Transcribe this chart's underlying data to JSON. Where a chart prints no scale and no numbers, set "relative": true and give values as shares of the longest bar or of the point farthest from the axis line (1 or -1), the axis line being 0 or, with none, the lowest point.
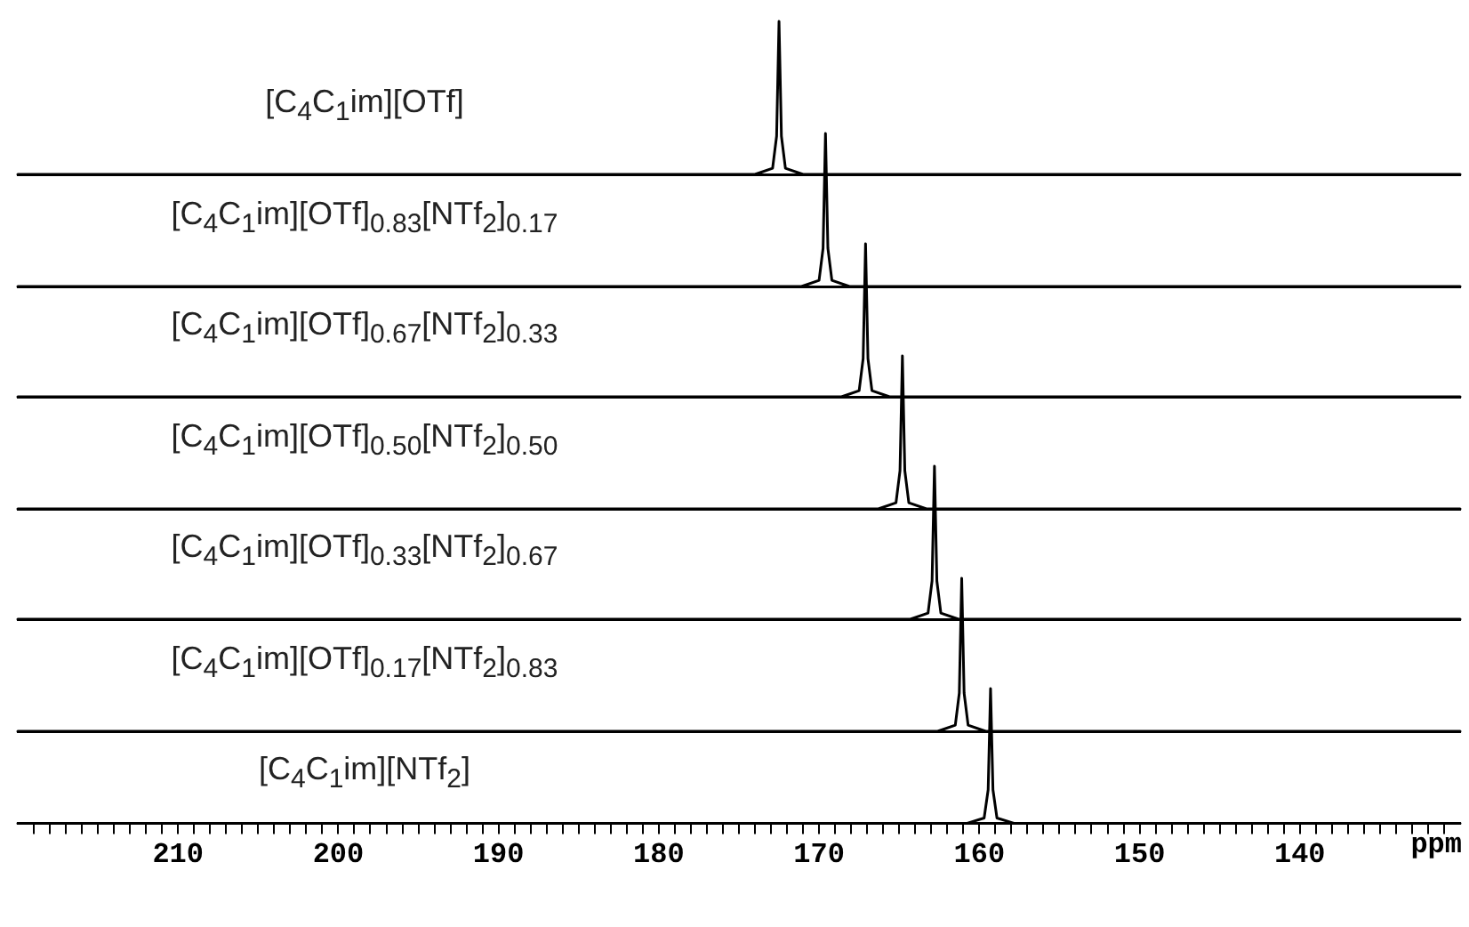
{
  "chart_data": [
    {
      "type": "line",
      "title": "[C$_{4}$C$_{1}$im][OTf]",
      "relative": true,
      "tick_labels": false,
      "xlim": [
        220,
        130
      ],
      "color": "#000000",
      "x": [
        220,
        174,
        172.9,
        172.65,
        172.5,
        172.35,
        172.1,
        171,
        130
      ],
      "values": [
        0,
        0,
        0.04,
        0.25,
        1,
        0.25,
        0.04,
        0,
        0
      ]
    },
    {
      "type": "line",
      "title": "[C$_{4}$C$_{1}$im][OTf]$_{0.83}$[NTf$_{2}$]$_{0.17}$",
      "relative": true,
      "tick_labels": false,
      "xlim": [
        220,
        130
      ],
      "color": "#000000",
      "x": [
        220,
        171.1,
        170,
        169.75,
        169.6,
        169.45,
        169.2,
        168.1,
        130
      ],
      "values": [
        0,
        0,
        0.04,
        0.25,
        1,
        0.25,
        0.04,
        0,
        0
      ]
    },
    {
      "type": "line",
      "title": "[C$_{4}$C$_{1}$im][OTf]$_{0.67}$[NTf$_{2}$]$_{0.33}$",
      "relative": true,
      "tick_labels": false,
      "xlim": [
        220,
        130
      ],
      "color": "#000000",
      "x": [
        220,
        168.6,
        167.5,
        167.25,
        167.1,
        166.95,
        166.7,
        165.6,
        130
      ],
      "values": [
        0,
        0,
        0.04,
        0.25,
        1,
        0.25,
        0.04,
        0,
        0
      ]
    },
    {
      "type": "line",
      "title": "[C$_{4}$C$_{1}$im][OTf]$_{0.50}$[NTf$_{2}$]$_{0.50}$",
      "relative": true,
      "tick_labels": false,
      "xlim": [
        220,
        130
      ],
      "color": "#000000",
      "x": [
        220,
        166.3,
        165.2,
        164.95,
        164.8,
        164.65,
        164.4,
        163.3,
        130
      ],
      "values": [
        0,
        0,
        0.04,
        0.25,
        1,
        0.25,
        0.04,
        0,
        0
      ]
    },
    {
      "type": "line",
      "title": "[C$_{4}$C$_{1}$im][OTf]$_{0.33}$[NTf$_{2}$]$_{0.67}$",
      "relative": true,
      "tick_labels": false,
      "xlim": [
        220,
        130
      ],
      "color": "#000000",
      "x": [
        220,
        164.3,
        163.2,
        162.95,
        162.8,
        162.65,
        162.4,
        161.3,
        130
      ],
      "values": [
        0,
        0,
        0.04,
        0.25,
        1,
        0.25,
        0.04,
        0,
        0
      ]
    },
    {
      "type": "line",
      "title": "[C$_{4}$C$_{1}$im][OTf]$_{0.17}$[NTf$_{2}$]$_{0.83}$",
      "relative": true,
      "tick_labels": false,
      "xlim": [
        220,
        130
      ],
      "color": "#000000",
      "x": [
        220,
        162.6,
        161.5,
        161.25,
        161.1,
        160.95,
        160.7,
        159.6,
        130
      ],
      "values": [
        0,
        0,
        0.04,
        0.25,
        1,
        0.25,
        0.04,
        0,
        0
      ]
    },
    {
      "type": "line",
      "title": "[C$_{4}$C$_{1}$im][NTf$_{2}$]",
      "relative": true,
      "tick_labels": "x",
      "xlim": [
        220,
        130
      ],
      "xlabel": "ppm",
      "color": "#000000",
      "x": [
        220,
        160.8,
        159.7,
        159.45,
        159.3,
        159.15,
        158.9,
        157.8,
        130
      ],
      "values": [
        0,
        0,
        0.04,
        0.25,
        1,
        0.25,
        0.04,
        0,
        0
      ],
      "xticks": [
        {
          "value": 219,
          "label": null
        },
        {
          "value": 218,
          "label": null
        },
        {
          "value": 217,
          "label": null
        },
        {
          "value": 216,
          "label": null
        },
        {
          "value": 215,
          "label": null
        },
        {
          "value": 214,
          "label": null
        },
        {
          "value": 213,
          "label": null
        },
        {
          "value": 212,
          "label": null
        },
        {
          "value": 211,
          "label": null
        },
        210,
        {
          "value": 209,
          "label": null
        },
        {
          "value": 208,
          "label": null
        },
        {
          "value": 207,
          "label": null
        },
        {
          "value": 206,
          "label": null
        },
        {
          "value": 205,
          "label": null
        },
        {
          "value": 204,
          "label": null
        },
        {
          "value": 203,
          "label": null
        },
        {
          "value": 202,
          "label": null
        },
        {
          "value": 201,
          "label": null
        },
        200,
        {
          "value": 199,
          "label": null
        },
        {
          "value": 198,
          "label": null
        },
        {
          "value": 197,
          "label": null
        },
        {
          "value": 196,
          "label": null
        },
        {
          "value": 195,
          "label": null
        },
        {
          "value": 194,
          "label": null
        },
        {
          "value": 193,
          "label": null
        },
        {
          "value": 192,
          "label": null
        },
        {
          "value": 191,
          "label": null
        },
        190,
        {
          "value": 189,
          "label": null
        },
        {
          "value": 188,
          "label": null
        },
        {
          "value": 187,
          "label": null
        },
        {
          "value": 186,
          "label": null
        },
        {
          "value": 185,
          "label": null
        },
        {
          "value": 184,
          "label": null
        },
        {
          "value": 183,
          "label": null
        },
        {
          "value": 182,
          "label": null
        },
        {
          "value": 181,
          "label": null
        },
        180,
        {
          "value": 179,
          "label": null
        },
        {
          "value": 178,
          "label": null
        },
        {
          "value": 177,
          "label": null
        },
        {
          "value": 176,
          "label": null
        },
        {
          "value": 175,
          "label": null
        },
        {
          "value": 174,
          "label": null
        },
        {
          "value": 173,
          "label": null
        },
        {
          "value": 172,
          "label": null
        },
        {
          "value": 171,
          "label": null
        },
        170,
        {
          "value": 169,
          "label": null
        },
        {
          "value": 168,
          "label": null
        },
        {
          "value": 167,
          "label": null
        },
        {
          "value": 166,
          "label": null
        },
        {
          "value": 165,
          "label": null
        },
        {
          "value": 164,
          "label": null
        },
        {
          "value": 163,
          "label": null
        },
        {
          "value": 162,
          "label": null
        },
        {
          "value": 161,
          "label": null
        },
        160,
        {
          "value": 159,
          "label": null
        },
        {
          "value": 158,
          "label": null
        },
        {
          "value": 157,
          "label": null
        },
        {
          "value": 156,
          "label": null
        },
        {
          "value": 155,
          "label": null
        },
        {
          "value": 154,
          "label": null
        },
        {
          "value": 153,
          "label": null
        },
        {
          "value": 152,
          "label": null
        },
        {
          "value": 151,
          "label": null
        },
        150,
        {
          "value": 149,
          "label": null
        },
        {
          "value": 148,
          "label": null
        },
        {
          "value": 147,
          "label": null
        },
        {
          "value": 146,
          "label": null
        },
        {
          "value": 145,
          "label": null
        },
        {
          "value": 144,
          "label": null
        },
        {
          "value": 143,
          "label": null
        },
        {
          "value": 142,
          "label": null
        },
        {
          "value": 141,
          "label": null
        },
        140,
        {
          "value": 139,
          "label": null
        },
        {
          "value": 138,
          "label": null
        },
        {
          "value": 137,
          "label": null
        },
        {
          "value": 136,
          "label": null
        },
        {
          "value": 135,
          "label": null
        },
        {
          "value": 134,
          "label": null
        },
        {
          "value": 133,
          "label": null
        },
        {
          "value": 132,
          "label": null
        },
        {
          "value": 131,
          "label": null
        }
      ]
    }
  ]
}
